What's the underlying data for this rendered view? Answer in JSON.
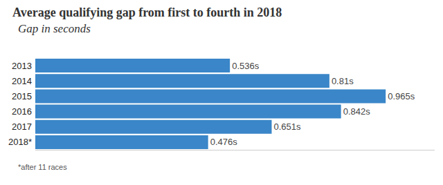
{
  "chart_data": {
    "type": "bar",
    "title": "Average qualifying gap from first to fourth in 2018",
    "subtitle": "Gap in seconds",
    "footnote": "*after 11 races",
    "orientation": "horizontal",
    "categories": [
      "2013",
      "2014",
      "2015",
      "2016",
      "2017",
      "2018*"
    ],
    "values": [
      0.536,
      0.81,
      0.965,
      0.842,
      0.651,
      0.476
    ],
    "value_labels": [
      "0.536s",
      "0.81s",
      "0.965s",
      "0.842s",
      "0.651s",
      "0.476s"
    ],
    "data_labels": true,
    "color": "#3a86c8",
    "xlim": [
      0,
      1.1
    ],
    "xticks": [],
    "tick_labels": "y",
    "grid": false
  }
}
